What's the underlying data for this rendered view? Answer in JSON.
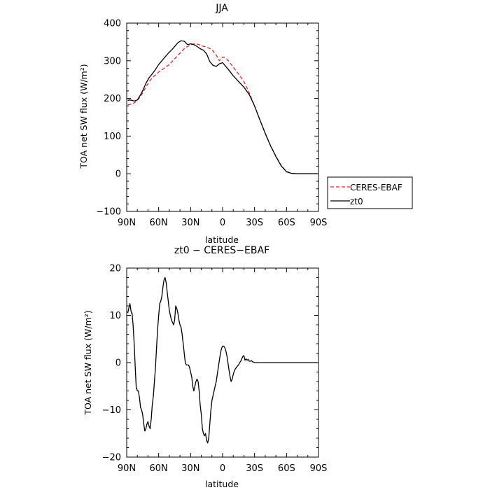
{
  "chart_data": [
    {
      "type": "line",
      "title": "JJA",
      "xlabel": "latitude",
      "ylabel": "TOA net SW flux (W/m²)",
      "xlim": [
        90,
        -90
      ],
      "ylim": [
        -100,
        400
      ],
      "xticks": [
        90,
        60,
        30,
        0,
        -30,
        -60,
        -90
      ],
      "xtick_labels": [
        "90N",
        "60N",
        "30N",
        "0",
        "30S",
        "60S",
        "90S"
      ],
      "yticks": [
        -100,
        0,
        100,
        200,
        300,
        400
      ],
      "ytick_labels": [
        "−100",
        "0",
        "100",
        "200",
        "300",
        "400"
      ],
      "legend": {
        "placement": "right-outside",
        "entries": [
          "CERES-EBAF",
          "zt0"
        ]
      },
      "series": [
        {
          "name": "CERES-EBAF",
          "color": "#e0252b",
          "dash": "dashed",
          "x": [
            89,
            85,
            82,
            80,
            77,
            75,
            72,
            69,
            66,
            63,
            60,
            55,
            50,
            45,
            40,
            35,
            30,
            27,
            25,
            22,
            20,
            15,
            10,
            6,
            3,
            0,
            -3,
            -6,
            -10,
            -15,
            -20,
            -25,
            -30,
            -35,
            -40,
            -45,
            -50,
            -55,
            -60,
            -65,
            -70,
            -75,
            -80,
            -85,
            -89
          ],
          "y": [
            183,
            185,
            190,
            195,
            205,
            215,
            230,
            244,
            255,
            262,
            270,
            280,
            290,
            305,
            320,
            335,
            342,
            345,
            345,
            343,
            340,
            336,
            330,
            315,
            300,
            310,
            308,
            298,
            283,
            265,
            245,
            215,
            180,
            143,
            108,
            75,
            47,
            22,
            6,
            1,
            0,
            0,
            0,
            0,
            0
          ]
        },
        {
          "name": "zt0",
          "color": "#000000",
          "dash": "solid",
          "x": [
            89,
            87,
            85,
            83,
            80,
            78,
            75,
            72,
            69,
            66,
            63,
            60,
            57,
            54,
            51,
            48,
            45,
            42,
            39,
            36,
            33,
            30,
            27,
            24,
            21,
            18,
            15,
            12,
            9,
            6,
            3,
            0,
            -3,
            -6,
            -10,
            -15,
            -20,
            -25,
            -30,
            -35,
            -40,
            -45,
            -50,
            -55,
            -60,
            -65,
            -70,
            -75,
            -80,
            -85,
            -89
          ],
          "y": [
            195,
            196,
            195,
            193,
            196,
            205,
            220,
            240,
            255,
            265,
            277,
            290,
            300,
            310,
            320,
            328,
            338,
            348,
            353,
            352,
            343,
            345,
            343,
            338,
            332,
            328,
            318,
            298,
            288,
            285,
            292,
            295,
            285,
            275,
            260,
            245,
            230,
            210,
            180,
            143,
            107,
            74,
            46,
            21,
            5,
            1,
            0,
            0,
            0,
            0,
            0
          ]
        }
      ]
    },
    {
      "type": "line",
      "title": "zt0 − CERES−EBAF",
      "xlabel": "latitude",
      "ylabel": "TOA net SW flux (W/m²)",
      "xlim": [
        90,
        -90
      ],
      "ylim": [
        -20,
        20
      ],
      "xticks": [
        90,
        60,
        30,
        0,
        -30,
        -60,
        -90
      ],
      "xtick_labels": [
        "90N",
        "60N",
        "30N",
        "0",
        "30S",
        "60S",
        "90S"
      ],
      "yticks": [
        -20,
        -10,
        0,
        10,
        20
      ],
      "ytick_labels": [
        "−20",
        "−10",
        "0",
        "10",
        "20"
      ],
      "series": [
        {
          "color": "#000000",
          "dash": "solid",
          "x": [
            89,
            88,
            87,
            86,
            85.5,
            85,
            84,
            83,
            82,
            81,
            80.5,
            80,
            79,
            78,
            77,
            76,
            75,
            74,
            73,
            72,
            71,
            70,
            69,
            68,
            67,
            66,
            65,
            64,
            63,
            62,
            61,
            60,
            59,
            58,
            57,
            56,
            55,
            54,
            53,
            52,
            51,
            50,
            49,
            48,
            47,
            46,
            45,
            44,
            43,
            42,
            41,
            40,
            39,
            38,
            37,
            36,
            35,
            34,
            33,
            32,
            31,
            30,
            29,
            28,
            27,
            26,
            25,
            24,
            23,
            22,
            21,
            20,
            19,
            18,
            17,
            16,
            15,
            14,
            13,
            12,
            11,
            10,
            9,
            8,
            7,
            6,
            5,
            4,
            3,
            2,
            1,
            0,
            -1,
            -2,
            -3,
            -4,
            -5,
            -6,
            -7,
            -8,
            -9,
            -10,
            -11,
            -12,
            -13,
            -14,
            -15,
            -16,
            -17,
            -18,
            -19,
            -20,
            -21,
            -22,
            -23,
            -24,
            -25,
            -26,
            -27,
            -28,
            -29,
            -30,
            -32,
            -34,
            -36,
            -38,
            -40,
            -42,
            -44,
            -46,
            -48,
            -50,
            -52,
            -54,
            -56,
            -58,
            -60,
            -62,
            -64,
            -66,
            -68,
            -70,
            -72,
            -74,
            -76,
            -78,
            -80,
            -82,
            -85,
            -89
          ],
          "y": [
            10.5,
            11.5,
            12.5,
            11,
            10.5,
            10.5,
            8,
            4,
            -1,
            -5.5,
            -5.5,
            -6,
            -6,
            -7.5,
            -9.5,
            -10,
            -11,
            -13,
            -14.5,
            -14,
            -13,
            -12.5,
            -13.5,
            -14,
            -12,
            -9,
            -7,
            -4,
            -1,
            3,
            7,
            10,
            12.5,
            13,
            14,
            16,
            17.5,
            18,
            17,
            15,
            13,
            11,
            10,
            9,
            8.5,
            8,
            9,
            12,
            11.5,
            10.5,
            9,
            8,
            7.5,
            6,
            4,
            2,
            0,
            -0.5,
            -0.5,
            -0.5,
            -1,
            -2,
            -3,
            -5,
            -6,
            -5,
            -4,
            -3.5,
            -4,
            -6,
            -9,
            -11,
            -14,
            -15,
            -15.5,
            -15,
            -16.5,
            -17,
            -16,
            -13,
            -10,
            -8,
            -7,
            -6,
            -5,
            -4,
            -2.5,
            -1,
            0.5,
            2,
            3,
            3.5,
            3.5,
            3.2,
            2.5,
            1.5,
            0,
            -1.5,
            -3,
            -4,
            -3.5,
            -2.5,
            -1.8,
            -1.3,
            -1,
            -0.7,
            -0.5,
            0,
            0.3,
            0.8,
            1.3,
            1.5,
            0.5,
            0.8,
            0.5,
            0.7,
            0.3,
            0.3,
            0.4,
            0.2,
            0.1,
            0,
            0,
            0,
            0,
            0,
            0,
            0,
            0,
            0,
            0,
            0,
            0,
            0,
            0,
            0,
            0,
            0,
            0,
            0,
            0,
            0,
            0,
            0,
            0,
            0,
            0,
            0,
            0,
            0
          ]
        }
      ]
    }
  ]
}
